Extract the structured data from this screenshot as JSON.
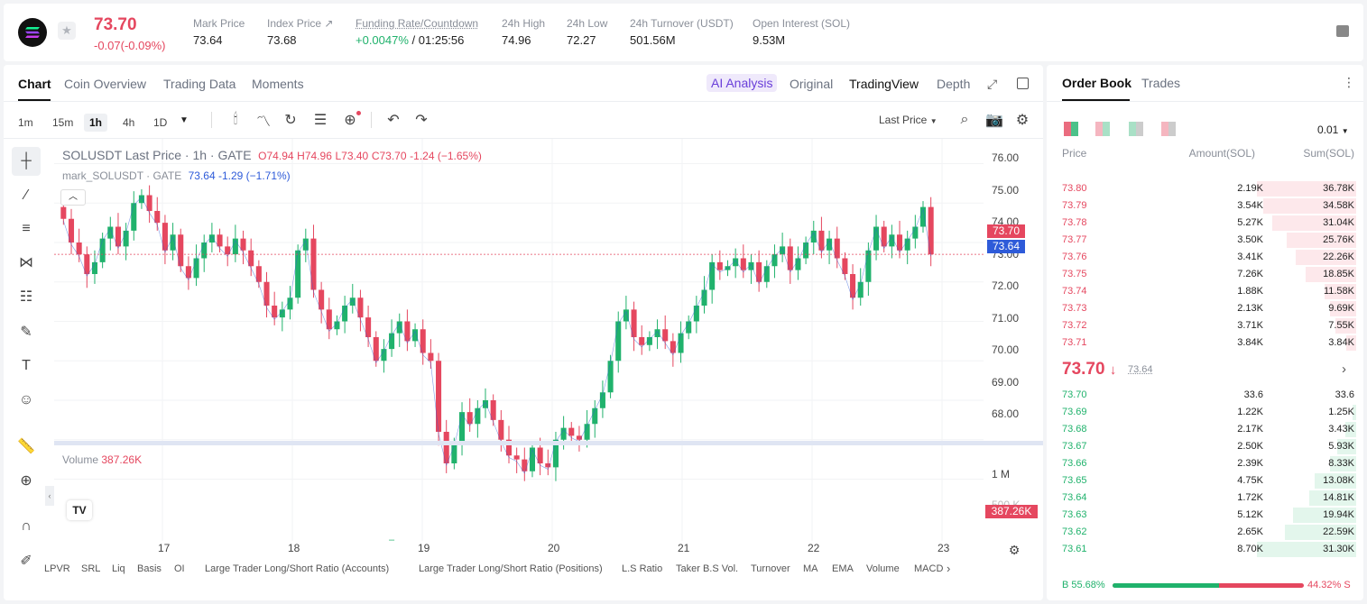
{
  "header": {
    "price": "73.70",
    "change": "-0.07(-0.09%)",
    "stats": [
      {
        "label": "Mark Price",
        "value": "73.64"
      },
      {
        "label": "Index Price ↗",
        "value": "73.68"
      },
      {
        "label": "Funding Rate/Countdown",
        "value": "+0.0047%",
        "value2": "/ 01:25:56"
      },
      {
        "label": "24h High",
        "value": "74.96"
      },
      {
        "label": "24h Low",
        "value": "72.27"
      },
      {
        "label": "24h Turnover (USDT)",
        "value": "501.56M"
      },
      {
        "label": "Open Interest (SOL)",
        "value": "9.53M"
      }
    ]
  },
  "chart_tabs": [
    "Chart",
    "Coin Overview",
    "Trading Data",
    "Moments"
  ],
  "view_tabs": {
    "ai": "AI Analysis",
    "original": "Original",
    "tradingview": "TradingView",
    "depth": "Depth"
  },
  "timeframes": [
    "1m",
    "15m",
    "1h",
    "4h",
    "1D"
  ],
  "price_type": "Last Price",
  "legend": {
    "symbol": "SOLUSDT Last Price · 1h · GATE",
    "o": "O74.94",
    "h": "H74.96",
    "l": "L73.40",
    "c": "C73.70",
    "chg": "-1.24 (−1.65%)",
    "mark": "mark_SOLUSDT · GATE",
    "mark_val": "73.64",
    "mark_chg": "-1.29 (−1.71%)"
  },
  "yaxis": [
    "76.00",
    "75.00",
    "74.00",
    "73.00",
    "72.00",
    "71.00",
    "70.00",
    "69.00",
    "68.00"
  ],
  "price_tags": {
    "last": "73.70",
    "mark": "73.64"
  },
  "volume": {
    "label": "Volume",
    "value": "387.26K",
    "axis": [
      "1 M",
      "500 K"
    ],
    "tag": "387.26K"
  },
  "xaxis": [
    "17",
    "18",
    "19",
    "20",
    "21",
    "22",
    "23"
  ],
  "indicators": [
    "LPVR",
    "SRL",
    "Liq",
    "Basis",
    "OI",
    "Large Trader Long/Short Ratio (Accounts)",
    "Large Trader Long/Short Ratio (Positions)",
    "L.S Ratio",
    "Taker B.S Vol.",
    "Turnover",
    "MA",
    "EMA",
    "Volume",
    "MACD"
  ],
  "orderbook": {
    "tabs": [
      "Order Book",
      "Trades"
    ],
    "precision": "0.01",
    "cols": [
      "Price",
      "Amount(SOL)",
      "Sum(SOL)"
    ],
    "asks": [
      [
        "73.80",
        "2.19K",
        "36.78K"
      ],
      [
        "73.79",
        "3.54K",
        "34.58K"
      ],
      [
        "73.78",
        "5.27K",
        "31.04K"
      ],
      [
        "73.77",
        "3.50K",
        "25.76K"
      ],
      [
        "73.76",
        "3.41K",
        "22.26K"
      ],
      [
        "73.75",
        "7.26K",
        "18.85K"
      ],
      [
        "73.74",
        "1.88K",
        "11.58K"
      ],
      [
        "73.73",
        "2.13K",
        "9.69K"
      ],
      [
        "73.72",
        "3.71K",
        "7.55K"
      ],
      [
        "73.71",
        "3.84K",
        "3.84K"
      ]
    ],
    "mid": "73.70",
    "mid_arrow": "↓",
    "mid_mark": "73.64",
    "bids": [
      [
        "73.70",
        "33.6",
        "33.6"
      ],
      [
        "73.69",
        "1.22K",
        "1.25K"
      ],
      [
        "73.68",
        "2.17K",
        "3.43K"
      ],
      [
        "73.67",
        "2.50K",
        "5.93K"
      ],
      [
        "73.66",
        "2.39K",
        "8.33K"
      ],
      [
        "73.65",
        "4.75K",
        "13.08K"
      ],
      [
        "73.64",
        "1.72K",
        "14.81K"
      ],
      [
        "73.63",
        "5.12K",
        "19.94K"
      ],
      [
        "73.62",
        "2.65K",
        "22.59K"
      ],
      [
        "73.61",
        "8.70K",
        "31.30K"
      ]
    ],
    "buy": "B 55.68%",
    "sell": "44.32% S",
    "buy_ratio": 0.5568
  },
  "chart_data": {
    "type": "candlestick",
    "ylim": [
      67.6,
      76.4
    ],
    "days": [
      "17",
      "18",
      "19",
      "20",
      "21",
      "22",
      "23"
    ],
    "closes": [
      74.6,
      74.0,
      73.7,
      73.2,
      73.5,
      74.1,
      74.4,
      73.9,
      74.3,
      75.0,
      75.2,
      74.8,
      74.5,
      73.8,
      74.2,
      73.4,
      73.1,
      73.6,
      74.0,
      74.2,
      73.9,
      73.7,
      74.1,
      73.8,
      73.4,
      73.0,
      72.4,
      72.1,
      72.3,
      72.6,
      73.8,
      74.1,
      72.8,
      72.3,
      71.8,
      72.0,
      72.4,
      72.6,
      72.1,
      71.6,
      71.0,
      71.3,
      71.7,
      72.0,
      71.5,
      71.8,
      71.2,
      71.0,
      69.2,
      68.4,
      68.9,
      69.7,
      69.4,
      69.8,
      70.0,
      69.5,
      69.0,
      68.6,
      68.5,
      68.2,
      68.8,
      68.4,
      68.3,
      69.0,
      69.3,
      69.1,
      69.0,
      69.4,
      69.8,
      70.2,
      71.0,
      72.0,
      72.3,
      71.6,
      71.4,
      71.6,
      71.8,
      71.5,
      71.2,
      71.7,
      72.0,
      72.4,
      72.8,
      73.5,
      73.3,
      73.4,
      73.6,
      73.3,
      73.5,
      73.0,
      73.4,
      73.7,
      73.9,
      73.3,
      73.6,
      74.0,
      74.3,
      73.8,
      74.1,
      73.6,
      73.2,
      72.6,
      73.0,
      73.8,
      74.4,
      73.9,
      74.2,
      73.8,
      74.1,
      74.4,
      74.9,
      73.7
    ],
    "volume": [
      450,
      380,
      300,
      260,
      340,
      420,
      500,
      610,
      520,
      380,
      340,
      460,
      560,
      330,
      260,
      300,
      350,
      400,
      460,
      520,
      460,
      360,
      300,
      420,
      560,
      640,
      780,
      500,
      420,
      380,
      460,
      780,
      830,
      560,
      460,
      420,
      380,
      460,
      560,
      520,
      700,
      860,
      1160,
      700,
      560,
      460,
      360,
      380,
      420,
      460,
      560,
      480,
      360,
      300,
      260,
      340,
      380,
      360,
      300,
      420,
      520,
      580,
      460,
      380,
      420,
      540,
      620,
      480,
      460,
      500,
      560,
      620,
      760,
      620,
      520,
      480,
      560,
      620,
      460,
      420,
      460,
      520,
      560,
      620,
      520,
      480,
      460,
      420,
      380,
      340,
      420,
      460,
      540,
      600,
      560,
      520,
      480,
      460,
      420,
      560,
      620,
      720,
      520,
      460,
      420,
      400,
      380,
      460,
      520,
      387
    ]
  }
}
